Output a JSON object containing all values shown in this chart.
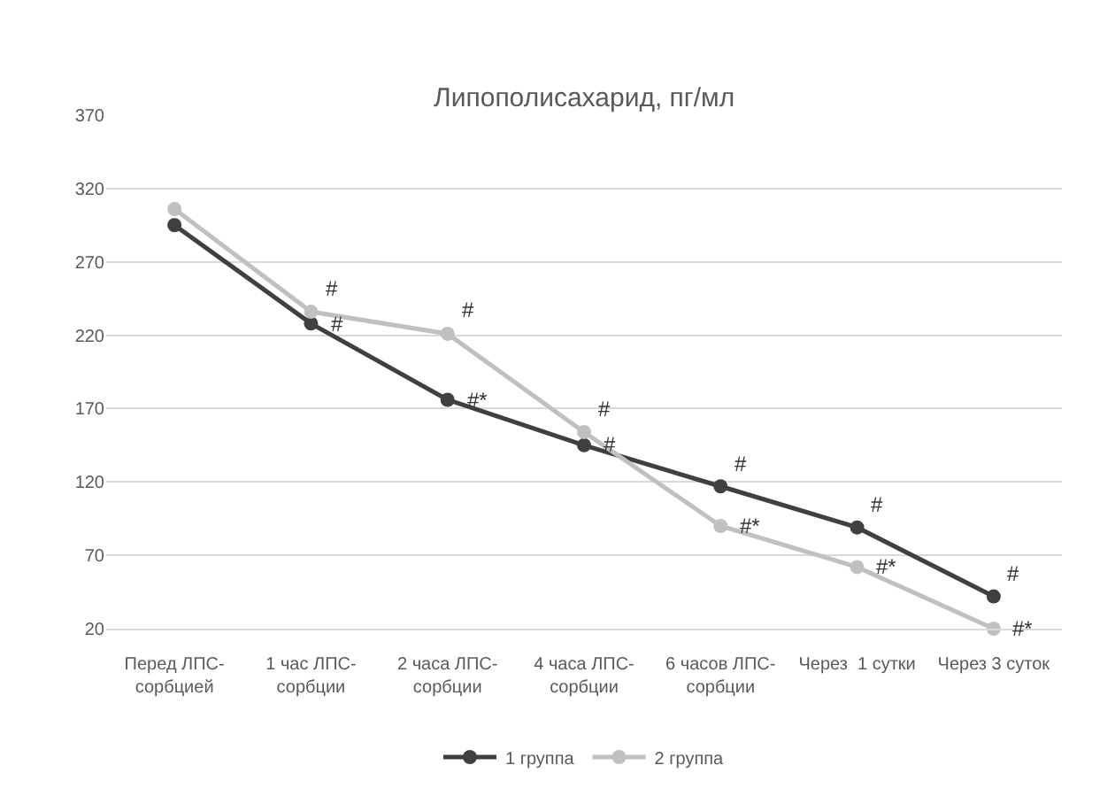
{
  "chart_data": {
    "type": "line",
    "title": "Липополисахарид, пг/мл",
    "categories": [
      "Перед ЛПС-\nсорбцией",
      "1 час ЛПС-\nсорбции",
      "2 часа ЛПС-\nсорбции",
      "4 часа ЛПС-\nсорбции",
      "6 часов ЛПС-\nсорбции",
      "Через  1 сутки",
      "Через 3 суток"
    ],
    "series": [
      {
        "name": "1 группа",
        "color": "#404040",
        "values": [
          295,
          228,
          176,
          145,
          117,
          89,
          42
        ]
      },
      {
        "name": "2 группа",
        "color": "#c0c0c0",
        "values": [
          306,
          236,
          221,
          154,
          90,
          62,
          20
        ]
      }
    ],
    "ylim": [
      20,
      370
    ],
    "yticks": [
      20,
      70,
      120,
      170,
      220,
      270,
      320,
      370
    ],
    "grid": "y",
    "legend": "bottom",
    "marker": "circle",
    "line_style": "solid",
    "annotations": [
      {
        "text": "#",
        "x": "1 час ЛПС-\nсорбции",
        "y": 236
      },
      {
        "text": "#",
        "x": "1 час ЛПС-\nсорбции",
        "y": 228
      },
      {
        "text": "#",
        "x": "2 часа ЛПС-\nсорбции",
        "y": 221
      },
      {
        "text": "#*",
        "x": "2 часа ЛПС-\nсорбции",
        "y": 176
      },
      {
        "text": "#",
        "x": "4 часа ЛПС-\nсорбции",
        "y": 154
      },
      {
        "text": "#",
        "x": "4 часа ЛПС-\nсорбции",
        "y": 145
      },
      {
        "text": "#",
        "x": "6 часов ЛПС-\nсорбции",
        "y": 117
      },
      {
        "text": "#*",
        "x": "6 часов ЛПС-\nсорбции",
        "y": 90
      },
      {
        "text": "#",
        "x": "Через  1 сутки",
        "y": 89
      },
      {
        "text": "#*",
        "x": "Через  1 сутки",
        "y": 62
      },
      {
        "text": "#",
        "x": "Через 3 суток",
        "y": 42
      },
      {
        "text": "#*",
        "x": "Через 3 суток",
        "y": 20
      }
    ]
  }
}
